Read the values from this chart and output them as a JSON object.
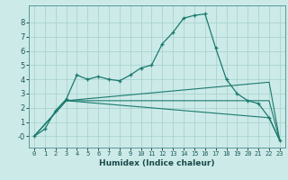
{
  "xlabel": "Humidex (Indice chaleur)",
  "bg_color": "#cceae8",
  "grid_color": "#aad4d0",
  "line_color": "#1a7a6e",
  "series1_x": [
    0,
    1,
    2,
    3,
    4,
    5,
    6,
    7,
    8,
    9,
    10,
    11,
    12,
    13,
    14,
    15,
    16,
    17,
    18,
    19,
    20,
    21,
    22,
    23
  ],
  "series1_y": [
    0.0,
    0.5,
    1.8,
    2.6,
    4.3,
    4.0,
    4.2,
    4.0,
    3.9,
    4.3,
    4.8,
    5.0,
    6.5,
    7.3,
    8.3,
    8.5,
    8.6,
    6.2,
    4.0,
    3.0,
    2.5,
    2.3,
    1.3,
    -0.3
  ],
  "series2_x": [
    0,
    3,
    22,
    23
  ],
  "series2_y": [
    0.0,
    2.5,
    1.3,
    -0.3
  ],
  "series3_x": [
    0,
    3,
    22,
    23
  ],
  "series3_y": [
    0.0,
    2.5,
    2.5,
    -0.3
  ],
  "series4_x": [
    0,
    3,
    22,
    23
  ],
  "series4_y": [
    0.0,
    2.5,
    3.8,
    -0.3
  ],
  "xlim": [
    -0.5,
    23.5
  ],
  "ylim": [
    -0.8,
    9.2
  ],
  "xticks": [
    0,
    1,
    2,
    3,
    4,
    5,
    6,
    7,
    8,
    9,
    10,
    11,
    12,
    13,
    14,
    15,
    16,
    17,
    18,
    19,
    20,
    21,
    22,
    23
  ],
  "yticks": [
    0,
    1,
    2,
    3,
    4,
    5,
    6,
    7,
    8
  ],
  "ytick_labels": [
    "-0",
    "1",
    "2",
    "3",
    "4",
    "5",
    "6",
    "7",
    "8"
  ]
}
